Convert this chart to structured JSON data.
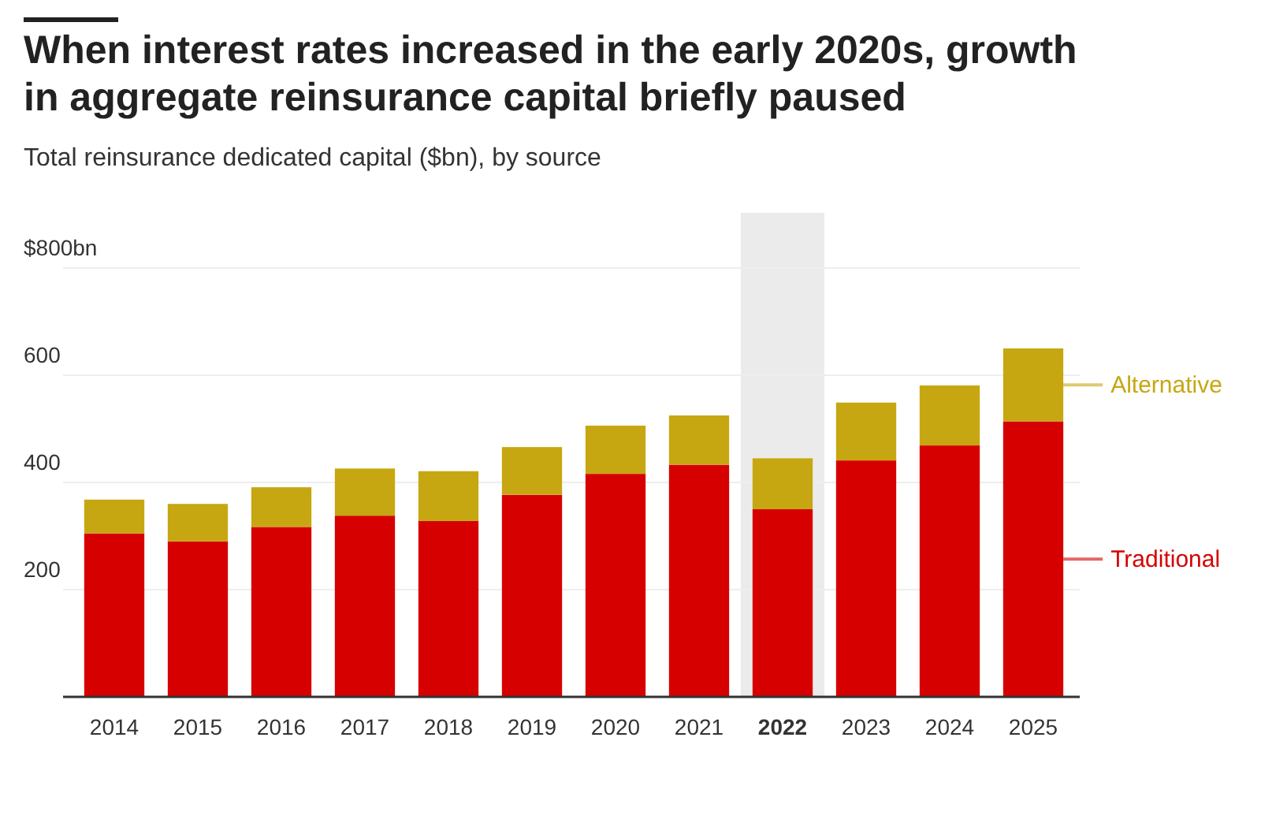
{
  "chart_data": {
    "type": "bar",
    "stacked": true,
    "title": "When interest rates increased in the early 2020s, growth in aggregate reinsurance capital briefly paused",
    "subtitle": "Total reinsurance dedicated capital ($bn), by source",
    "categories": [
      "2014",
      "2015",
      "2016",
      "2017",
      "2018",
      "2019",
      "2020",
      "2021",
      "2022",
      "2023",
      "2024",
      "2025"
    ],
    "series": [
      {
        "name": "Traditional",
        "color": "#d60000",
        "values": [
          305,
          290,
          317,
          338,
          328,
          377,
          416,
          433,
          350,
          441,
          469,
          514
        ]
      },
      {
        "name": "Alternative",
        "color": "#c6a711",
        "values": [
          63,
          70,
          74,
          88,
          93,
          89,
          90,
          92,
          95,
          108,
          112,
          136
        ]
      }
    ],
    "ylim": [
      0,
      800
    ],
    "yticks": [
      200,
      400,
      600,
      {
        "value": 800,
        "label": "$800bn"
      }
    ],
    "grid": "y",
    "legend": "right",
    "bands": [
      {
        "axis": "x",
        "from": "2022",
        "to": "2022",
        "color": "#ebebeb"
      }
    ]
  }
}
